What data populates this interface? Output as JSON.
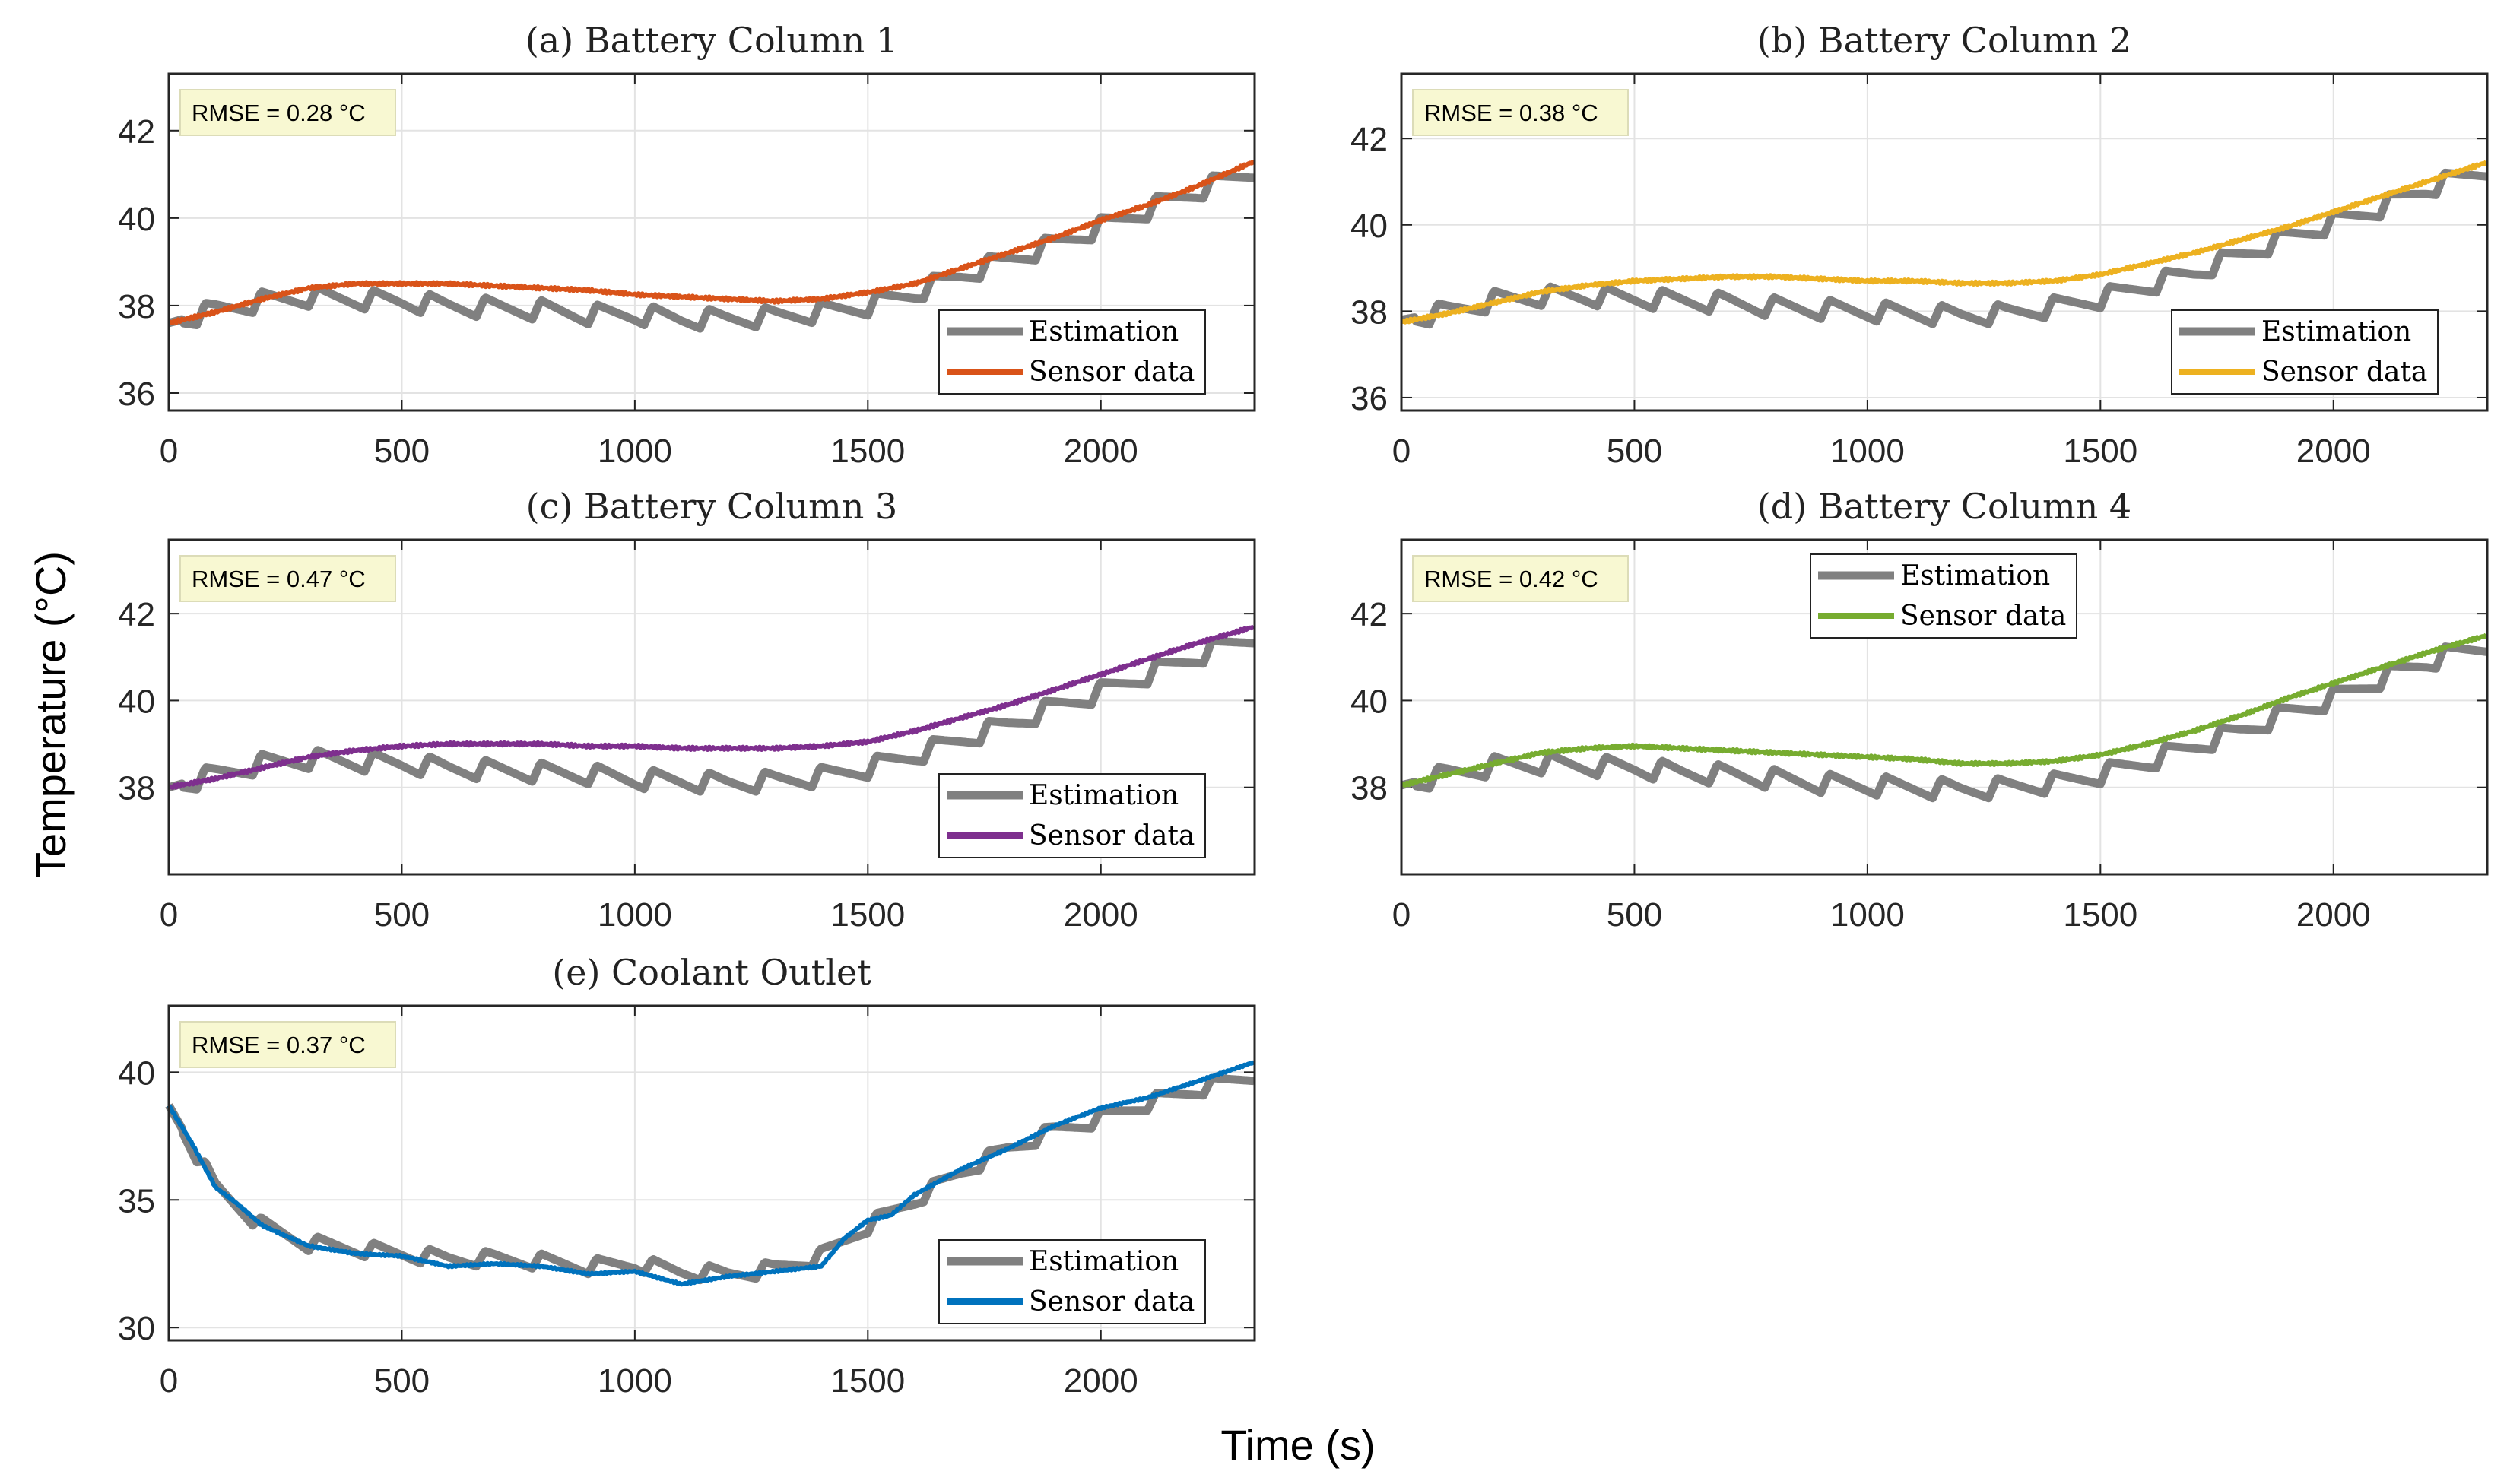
{
  "xlabel": "Time (s)",
  "ylabel": "Temperature (°C)",
  "colors": {
    "estimation": "#808080",
    "grid": "#e3e3e3",
    "rmse_bg": "#f8f8d2"
  },
  "chart_data": [
    {
      "type": "line",
      "title": "(a) Battery Column 1",
      "rmse": "RMSE = 0.28 °C",
      "xlim": [
        0,
        2330
      ],
      "ylim": [
        35.6,
        43.3
      ],
      "xticks": [
        0,
        500,
        1000,
        1500,
        2000
      ],
      "yticks": [
        36,
        38,
        40,
        42
      ],
      "legend": {
        "placement": "bottom-right",
        "entries": [
          "Estimation",
          "Sensor data"
        ]
      },
      "grid": true,
      "sensor": {
        "color": "#d95319",
        "x": [
          0,
          100,
          200,
          300,
          400,
          500,
          600,
          700,
          800,
          900,
          1000,
          1100,
          1200,
          1300,
          1400,
          1500,
          1600,
          1700,
          1800,
          1900,
          2000,
          2100,
          2200,
          2330
        ],
        "y": [
          37.6,
          37.85,
          38.15,
          38.4,
          38.5,
          38.5,
          38.5,
          38.45,
          38.4,
          38.35,
          38.25,
          38.2,
          38.15,
          38.1,
          38.15,
          38.3,
          38.5,
          38.85,
          39.2,
          39.55,
          39.95,
          40.3,
          40.7,
          41.3
        ]
      },
      "estimation": {
        "ripple_amplitude": 0.45,
        "ripple_period_s": 120,
        "x": [
          0,
          100,
          200,
          300,
          400,
          500,
          600,
          700,
          800,
          900,
          1000,
          1100,
          1200,
          1300,
          1400,
          1500,
          1600,
          1700,
          1800,
          1900,
          2000,
          2100,
          2200,
          2330
        ],
        "y": [
          37.6,
          37.9,
          38.1,
          38.2,
          38.15,
          38.1,
          38.0,
          37.95,
          37.9,
          37.8,
          37.8,
          37.7,
          37.7,
          37.75,
          37.85,
          38.0,
          38.3,
          38.7,
          39.05,
          39.4,
          39.8,
          40.2,
          40.6,
          41.1
        ]
      }
    },
    {
      "type": "line",
      "title": "(b) Battery Column 2",
      "rmse": "RMSE = 0.38 °C",
      "xlim": [
        0,
        2330
      ],
      "ylim": [
        35.7,
        43.5
      ],
      "xticks": [
        0,
        500,
        1000,
        1500,
        2000
      ],
      "yticks": [
        36,
        38,
        40,
        42
      ],
      "legend": {
        "placement": "bottom-right",
        "entries": [
          "Estimation",
          "Sensor data"
        ]
      },
      "grid": true,
      "sensor": {
        "color": "#edb120",
        "x": [
          0,
          100,
          200,
          300,
          400,
          500,
          600,
          700,
          800,
          900,
          1000,
          1100,
          1200,
          1300,
          1400,
          1500,
          1600,
          1700,
          1800,
          1900,
          2000,
          2100,
          2200,
          2330
        ],
        "y": [
          37.75,
          37.95,
          38.2,
          38.45,
          38.6,
          38.7,
          38.75,
          38.8,
          38.8,
          38.75,
          38.7,
          38.7,
          38.65,
          38.65,
          38.7,
          38.85,
          39.1,
          39.35,
          39.65,
          39.95,
          40.3,
          40.65,
          41.0,
          41.45
        ]
      },
      "estimation": {
        "ripple_amplitude": 0.45,
        "ripple_period_s": 120,
        "x": [
          0,
          100,
          200,
          300,
          400,
          500,
          600,
          700,
          800,
          900,
          1000,
          1100,
          1200,
          1300,
          1400,
          1500,
          1600,
          1700,
          1800,
          1900,
          2000,
          2100,
          2200,
          2330
        ],
        "y": [
          37.8,
          38.0,
          38.25,
          38.35,
          38.35,
          38.3,
          38.25,
          38.2,
          38.1,
          38.05,
          38.0,
          37.95,
          37.9,
          37.95,
          38.1,
          38.3,
          38.6,
          38.9,
          39.3,
          39.7,
          40.05,
          40.4,
          40.85,
          41.3
        ]
      }
    },
    {
      "type": "line",
      "title": "(c) Battery Column 3",
      "rmse": "RMSE = 0.47 °C",
      "xlim": [
        0,
        2330
      ],
      "ylim": [
        36.0,
        43.7
      ],
      "xticks": [
        0,
        500,
        1000,
        1500,
        2000
      ],
      "yticks": [
        38,
        40,
        42
      ],
      "legend": {
        "placement": "bottom-right",
        "entries": [
          "Estimation",
          "Sensor data"
        ]
      },
      "grid": true,
      "sensor": {
        "color": "#7e2f8e",
        "x": [
          0,
          100,
          200,
          300,
          400,
          500,
          600,
          700,
          800,
          900,
          1000,
          1100,
          1200,
          1300,
          1400,
          1500,
          1600,
          1700,
          1800,
          1900,
          2000,
          2100,
          2200,
          2330
        ],
        "y": [
          38.0,
          38.2,
          38.45,
          38.7,
          38.85,
          38.95,
          39.0,
          39.0,
          39.0,
          38.95,
          38.95,
          38.9,
          38.9,
          38.9,
          38.95,
          39.05,
          39.3,
          39.6,
          39.9,
          40.25,
          40.6,
          40.95,
          41.3,
          41.7
        ]
      },
      "estimation": {
        "ripple_amplitude": 0.45,
        "ripple_period_s": 120,
        "x": [
          0,
          100,
          200,
          300,
          400,
          500,
          600,
          700,
          800,
          900,
          1000,
          1100,
          1200,
          1300,
          1400,
          1500,
          1600,
          1700,
          1800,
          1900,
          2000,
          2100,
          2200,
          2330
        ],
        "y": [
          38.0,
          38.3,
          38.55,
          38.65,
          38.6,
          38.55,
          38.45,
          38.4,
          38.35,
          38.3,
          38.2,
          38.15,
          38.1,
          38.15,
          38.25,
          38.45,
          38.75,
          39.1,
          39.45,
          39.85,
          40.2,
          40.6,
          41.0,
          41.5
        ]
      }
    },
    {
      "type": "line",
      "title": "(d) Battery Column 4",
      "rmse": "RMSE = 0.42 °C",
      "xlim": [
        0,
        2330
      ],
      "ylim": [
        36.0,
        43.7
      ],
      "xticks": [
        0,
        500,
        1000,
        1500,
        2000
      ],
      "yticks": [
        38,
        40,
        42
      ],
      "legend": {
        "placement": "top-center",
        "entries": [
          "Estimation",
          "Sensor data"
        ]
      },
      "grid": true,
      "sensor": {
        "color": "#77ac30",
        "x": [
          0,
          100,
          200,
          300,
          400,
          500,
          600,
          700,
          800,
          900,
          1000,
          1100,
          1200,
          1300,
          1400,
          1500,
          1600,
          1700,
          1800,
          1900,
          2000,
          2100,
          2200,
          2330
        ],
        "y": [
          38.05,
          38.3,
          38.55,
          38.8,
          38.9,
          38.95,
          38.9,
          38.85,
          38.8,
          38.75,
          38.7,
          38.65,
          38.55,
          38.55,
          38.6,
          38.75,
          39.0,
          39.3,
          39.65,
          40.05,
          40.4,
          40.75,
          41.1,
          41.5
        ]
      },
      "estimation": {
        "ripple_amplitude": 0.45,
        "ripple_period_s": 120,
        "x": [
          0,
          100,
          200,
          300,
          400,
          500,
          600,
          700,
          800,
          900,
          1000,
          1100,
          1200,
          1300,
          1400,
          1500,
          1600,
          1700,
          1800,
          1900,
          2000,
          2100,
          2200,
          2330
        ],
        "y": [
          38.05,
          38.3,
          38.5,
          38.55,
          38.5,
          38.45,
          38.35,
          38.3,
          38.2,
          38.1,
          38.05,
          38.0,
          37.95,
          38.0,
          38.1,
          38.3,
          38.6,
          38.95,
          39.3,
          39.7,
          40.05,
          40.5,
          40.9,
          41.3
        ]
      }
    },
    {
      "type": "line",
      "title": "(e) Coolant Outlet",
      "rmse": "RMSE = 0.37 °C",
      "xlim": [
        0,
        2330
      ],
      "ylim": [
        29.5,
        42.6
      ],
      "xticks": [
        0,
        500,
        1000,
        1500,
        2000
      ],
      "yticks": [
        30,
        35,
        40
      ],
      "legend": {
        "placement": "bottom-right",
        "entries": [
          "Estimation",
          "Sensor data"
        ]
      },
      "grid": true,
      "sensor": {
        "color": "#0072bd",
        "x": [
          0,
          50,
          100,
          150,
          200,
          300,
          400,
          500,
          600,
          700,
          800,
          900,
          1000,
          1100,
          1200,
          1300,
          1400,
          1450,
          1500,
          1550,
          1600,
          1700,
          1800,
          1900,
          2000,
          2100,
          2200,
          2330
        ],
        "y": [
          38.7,
          37.2,
          35.5,
          34.8,
          34.0,
          33.2,
          32.9,
          32.8,
          32.4,
          32.5,
          32.4,
          32.1,
          32.2,
          31.7,
          32.0,
          32.2,
          32.4,
          33.5,
          34.2,
          34.4,
          35.2,
          36.2,
          37.0,
          37.9,
          38.6,
          39.0,
          39.6,
          40.4
        ]
      },
      "estimation": {
        "ripple_amplitude": 0.6,
        "ripple_period_s": 120,
        "x": [
          0,
          100,
          200,
          300,
          400,
          500,
          600,
          700,
          800,
          900,
          1000,
          1100,
          1200,
          1300,
          1400,
          1500,
          1600,
          1700,
          1800,
          1900,
          2000,
          2100,
          2200,
          2330
        ],
        "y": [
          38.7,
          35.5,
          34.0,
          33.3,
          33.1,
          32.9,
          32.7,
          32.7,
          32.6,
          32.4,
          32.5,
          32.2,
          32.1,
          32.3,
          32.8,
          34.0,
          35.0,
          36.1,
          37.0,
          37.7,
          38.2,
          38.8,
          39.3,
          39.9
        ]
      }
    }
  ]
}
